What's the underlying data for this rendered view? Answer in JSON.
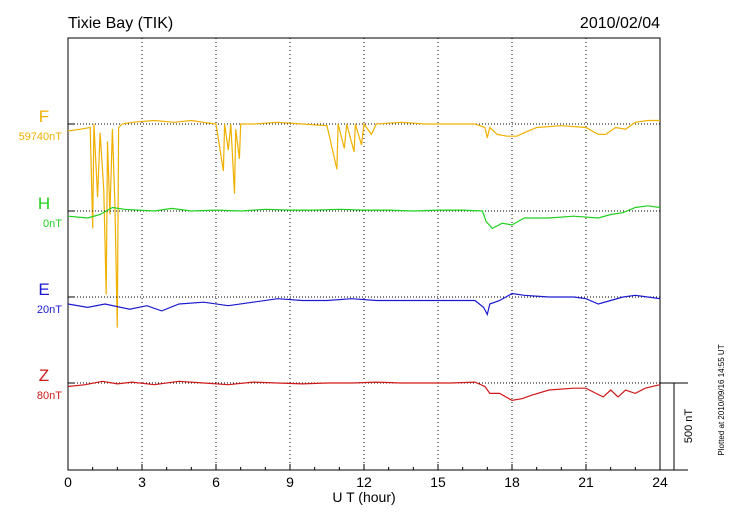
{
  "chart_data": {
    "type": "line",
    "title": "Tixie Bay (TIK)",
    "date": "2010/02/04",
    "xlabel": "U T (hour)",
    "xlim": [
      0,
      24
    ],
    "xticks": [
      0,
      3,
      6,
      9,
      12,
      15,
      18,
      21,
      24
    ],
    "xtick_labels": [
      "0",
      "3",
      "6",
      "9",
      "12",
      "15",
      "18",
      "21",
      "24"
    ],
    "grid": "dotted vertical lines at every 3 hours",
    "scale_bar": {
      "label": "500 nT",
      "value": 500
    },
    "plotted_note": "Plotted at 2010/09/16 14:55 UT",
    "series": [
      {
        "name": "F",
        "baseline_label": "59740nT",
        "color": "#f0b000",
        "samples": [
          [
            0,
            -40
          ],
          [
            0.5,
            -30
          ],
          [
            0.9,
            -20
          ],
          [
            1.0,
            -600
          ],
          [
            1.05,
            0
          ],
          [
            1.2,
            -420
          ],
          [
            1.3,
            -50
          ],
          [
            1.45,
            -380
          ],
          [
            1.55,
            -980
          ],
          [
            1.6,
            -100
          ],
          [
            1.7,
            -520
          ],
          [
            1.8,
            -30
          ],
          [
            1.9,
            -460
          ],
          [
            2.0,
            -1170
          ],
          [
            2.05,
            -20
          ],
          [
            2.2,
            0
          ],
          [
            2.6,
            10
          ],
          [
            3.5,
            20
          ],
          [
            4.3,
            10
          ],
          [
            5.0,
            20
          ],
          [
            5.5,
            10
          ],
          [
            6.0,
            0
          ],
          [
            6.3,
            -270
          ],
          [
            6.35,
            0
          ],
          [
            6.5,
            -150
          ],
          [
            6.6,
            0
          ],
          [
            6.75,
            -400
          ],
          [
            6.8,
            -30
          ],
          [
            6.95,
            -200
          ],
          [
            7.0,
            0
          ],
          [
            7.5,
            0
          ],
          [
            8.5,
            10
          ],
          [
            9.5,
            0
          ],
          [
            10.5,
            -10
          ],
          [
            10.9,
            -260
          ],
          [
            10.95,
            0
          ],
          [
            11.2,
            -140
          ],
          [
            11.3,
            0
          ],
          [
            11.6,
            -160
          ],
          [
            11.65,
            0
          ],
          [
            11.9,
            -120
          ],
          [
            12.0,
            0
          ],
          [
            12.3,
            -60
          ],
          [
            12.5,
            0
          ],
          [
            13.5,
            10
          ],
          [
            14.5,
            0
          ],
          [
            15.5,
            0
          ],
          [
            16.5,
            0
          ],
          [
            16.9,
            -20
          ],
          [
            17.0,
            -80
          ],
          [
            17.1,
            -20
          ],
          [
            17.4,
            -60
          ],
          [
            17.8,
            -70
          ],
          [
            18.2,
            -70
          ],
          [
            18.5,
            -50
          ],
          [
            19.0,
            -20
          ],
          [
            20.0,
            -10
          ],
          [
            21.0,
            -20
          ],
          [
            21.5,
            -60
          ],
          [
            21.8,
            -60
          ],
          [
            22.2,
            -20
          ],
          [
            22.6,
            -30
          ],
          [
            23.0,
            10
          ],
          [
            23.5,
            20
          ],
          [
            24.0,
            20
          ]
        ]
      },
      {
        "name": "H",
        "baseline_label": "0nT",
        "color": "#20d020",
        "samples": [
          [
            0,
            -30
          ],
          [
            0.8,
            -40
          ],
          [
            1.3,
            -20
          ],
          [
            1.8,
            20
          ],
          [
            2.3,
            10
          ],
          [
            3.5,
            0
          ],
          [
            4.2,
            15
          ],
          [
            5.0,
            0
          ],
          [
            6.0,
            5
          ],
          [
            7.0,
            0
          ],
          [
            8.0,
            10
          ],
          [
            9.0,
            5
          ],
          [
            10.0,
            5
          ],
          [
            11.0,
            10
          ],
          [
            12.0,
            5
          ],
          [
            13.0,
            5
          ],
          [
            14.0,
            0
          ],
          [
            15.0,
            5
          ],
          [
            16.0,
            5
          ],
          [
            16.8,
            0
          ],
          [
            16.95,
            -60
          ],
          [
            17.2,
            -100
          ],
          [
            17.6,
            -70
          ],
          [
            18.0,
            -80
          ],
          [
            18.5,
            -40
          ],
          [
            19.5,
            -40
          ],
          [
            20.5,
            -30
          ],
          [
            21.5,
            -40
          ],
          [
            22.0,
            -20
          ],
          [
            22.5,
            -10
          ],
          [
            23.0,
            20
          ],
          [
            23.5,
            30
          ],
          [
            24.0,
            20
          ]
        ]
      },
      {
        "name": "E",
        "baseline_label": "20nT",
        "color": "#1a1ad0",
        "samples": [
          [
            0,
            -40
          ],
          [
            0.8,
            -60
          ],
          [
            1.5,
            -40
          ],
          [
            2.5,
            -70
          ],
          [
            3.2,
            -50
          ],
          [
            3.8,
            -80
          ],
          [
            4.5,
            -40
          ],
          [
            5.5,
            -30
          ],
          [
            6.5,
            -50
          ],
          [
            7.5,
            -30
          ],
          [
            8.5,
            -10
          ],
          [
            9.5,
            -20
          ],
          [
            10.5,
            -20
          ],
          [
            11.5,
            -10
          ],
          [
            12.5,
            -20
          ],
          [
            13.5,
            -20
          ],
          [
            14.5,
            -20
          ],
          [
            15.5,
            -20
          ],
          [
            16.5,
            -20
          ],
          [
            16.85,
            -60
          ],
          [
            17.0,
            -100
          ],
          [
            17.1,
            -40
          ],
          [
            17.5,
            -20
          ],
          [
            18.0,
            20
          ],
          [
            18.5,
            10
          ],
          [
            19.5,
            0
          ],
          [
            20.5,
            0
          ],
          [
            21.0,
            -10
          ],
          [
            21.5,
            -40
          ],
          [
            22.0,
            -20
          ],
          [
            22.5,
            0
          ],
          [
            23.0,
            10
          ],
          [
            23.5,
            0
          ],
          [
            24.0,
            -10
          ]
        ]
      },
      {
        "name": "Z",
        "baseline_label": "80nT",
        "color": "#d01818",
        "samples": [
          [
            0,
            -20
          ],
          [
            0.7,
            -10
          ],
          [
            1.4,
            10
          ],
          [
            2.0,
            -5
          ],
          [
            2.6,
            5
          ],
          [
            3.5,
            -10
          ],
          [
            4.5,
            10
          ],
          [
            5.5,
            0
          ],
          [
            6.5,
            -10
          ],
          [
            7.5,
            5
          ],
          [
            8.5,
            0
          ],
          [
            9.5,
            -5
          ],
          [
            10.5,
            0
          ],
          [
            11.5,
            0
          ],
          [
            12.5,
            5
          ],
          [
            13.5,
            0
          ],
          [
            14.5,
            0
          ],
          [
            15.5,
            0
          ],
          [
            16.5,
            5
          ],
          [
            16.9,
            -20
          ],
          [
            17.1,
            -60
          ],
          [
            17.5,
            -60
          ],
          [
            18.0,
            -100
          ],
          [
            18.4,
            -90
          ],
          [
            18.8,
            -70
          ],
          [
            19.5,
            -40
          ],
          [
            20.5,
            -30
          ],
          [
            21.0,
            -30
          ],
          [
            21.4,
            -60
          ],
          [
            21.7,
            -80
          ],
          [
            22.0,
            -40
          ],
          [
            22.3,
            -80
          ],
          [
            22.6,
            -40
          ],
          [
            23.0,
            -60
          ],
          [
            23.4,
            -30
          ],
          [
            24.0,
            -10
          ]
        ]
      }
    ]
  }
}
